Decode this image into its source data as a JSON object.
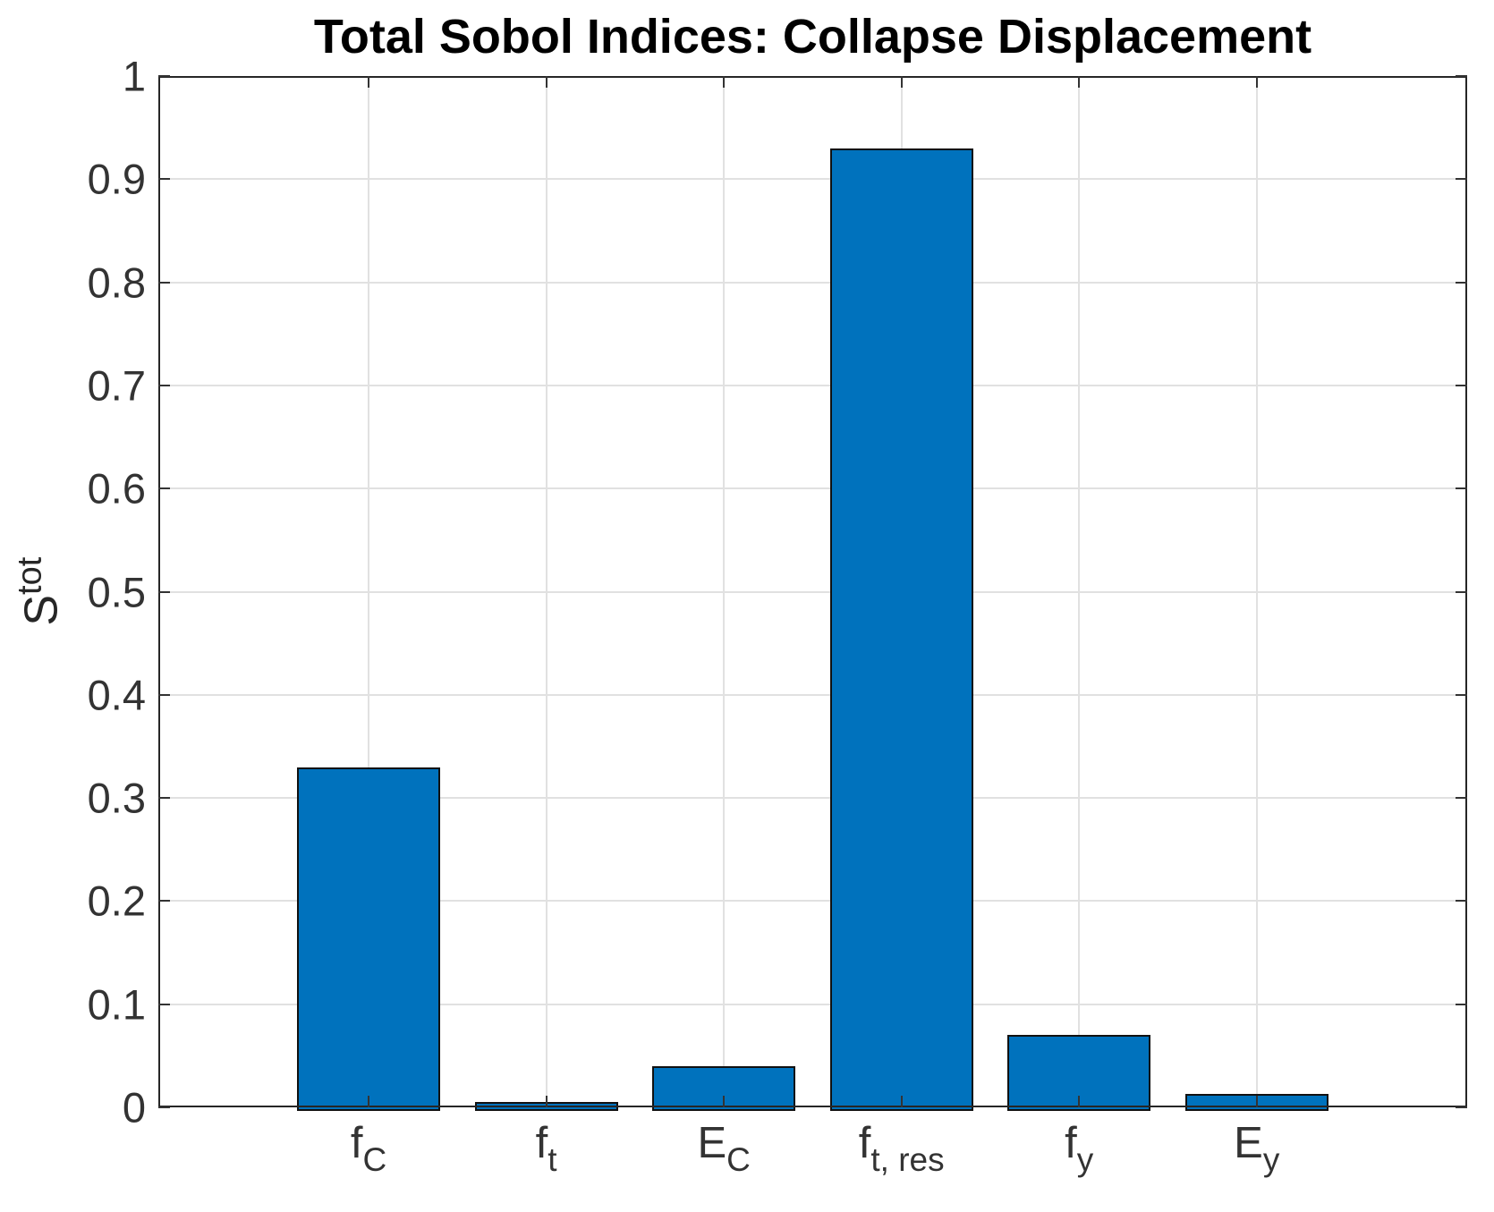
{
  "figure": {
    "background": "#ffffff"
  },
  "chart_data": {
    "type": "bar",
    "title": "Total Sobol Indices: Collapse Displacement",
    "ylabel": {
      "base": "S",
      "sup": "tot"
    },
    "xlabel": "",
    "categories": [
      {
        "base": "f",
        "sub": "C"
      },
      {
        "base": "f",
        "sub": "t"
      },
      {
        "base": "E",
        "sub": "C"
      },
      {
        "base": "f",
        "sub": "t, res"
      },
      {
        "base": "f",
        "sub": "y"
      },
      {
        "base": "E",
        "sub": "y"
      }
    ],
    "values": [
      0.33,
      0.005,
      0.04,
      0.93,
      0.07,
      0.013
    ],
    "ylim": [
      0,
      1
    ],
    "yticks": [
      {
        "v": 0.0,
        "label": "0"
      },
      {
        "v": 0.1,
        "label": "0.1"
      },
      {
        "v": 0.2,
        "label": "0.2"
      },
      {
        "v": 0.3,
        "label": "0.3"
      },
      {
        "v": 0.4,
        "label": "0.4"
      },
      {
        "v": 0.5,
        "label": "0.5"
      },
      {
        "v": 0.6,
        "label": "0.6"
      },
      {
        "v": 0.7,
        "label": "0.7"
      },
      {
        "v": 0.8,
        "label": "0.8"
      },
      {
        "v": 0.9,
        "label": "0.9"
      },
      {
        "v": 1.0,
        "label": "1"
      }
    ],
    "grid": "on",
    "legend": "none",
    "bar_color": "#0072BD",
    "bar_edge_color": "#111111",
    "axis_color": "#262626",
    "grid_color": "#e1e1e1",
    "tick_dir": "in",
    "layout": {
      "first_center_frac": 0.1607,
      "center_spacing_frac": 0.1357,
      "bar_width_frac": 0.1094
    }
  }
}
